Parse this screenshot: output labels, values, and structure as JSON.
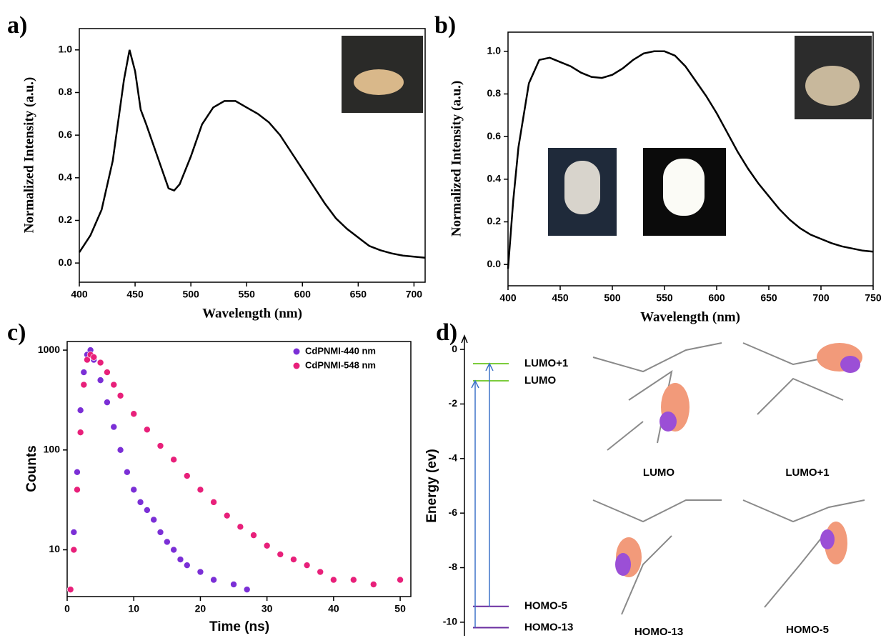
{
  "chart_data": [
    {
      "type": "line",
      "label": "a)",
      "xlabel": "Wavelength (nm)",
      "ylabel": "Normalized Intensity (a.u.)",
      "x": [
        400,
        410,
        420,
        430,
        440,
        445,
        450,
        455,
        460,
        470,
        480,
        485,
        490,
        500,
        510,
        520,
        530,
        540,
        550,
        560,
        570,
        580,
        590,
        600,
        610,
        620,
        630,
        640,
        650,
        660,
        670,
        680,
        690,
        700,
        710
      ],
      "values": [
        0.05,
        0.13,
        0.25,
        0.48,
        0.86,
        1.0,
        0.9,
        0.72,
        0.65,
        0.5,
        0.35,
        0.34,
        0.37,
        0.5,
        0.65,
        0.73,
        0.76,
        0.76,
        0.73,
        0.7,
        0.66,
        0.6,
        0.52,
        0.44,
        0.36,
        0.28,
        0.21,
        0.16,
        0.12,
        0.08,
        0.06,
        0.045,
        0.035,
        0.03,
        0.025
      ],
      "color": "#000000",
      "xlim": [
        400,
        710
      ],
      "xticks": [
        400,
        450,
        500,
        550,
        600,
        650,
        700
      ],
      "ylim": [
        -0.09,
        1.1
      ],
      "yticks": [
        {
          "value": 0,
          "label": "0.0"
        },
        {
          "value": 0.2,
          "label": "0.2"
        },
        {
          "value": 0.4,
          "label": "0.4"
        },
        {
          "value": 0.6,
          "label": "0.6"
        },
        {
          "value": 0.8,
          "label": "0.8"
        },
        {
          "value": 1,
          "label": "1.0"
        }
      ]
    },
    {
      "type": "line",
      "label": "b)",
      "xlabel": "Wavelength (nm)",
      "ylabel": "Normalized Intensity (a.u.)",
      "x": [
        400,
        405,
        410,
        420,
        430,
        440,
        450,
        460,
        470,
        480,
        490,
        500,
        510,
        520,
        530,
        540,
        550,
        560,
        570,
        580,
        590,
        600,
        610,
        620,
        630,
        640,
        650,
        660,
        670,
        680,
        690,
        700,
        710,
        720,
        730,
        740,
        750
      ],
      "values": [
        -0.02,
        0.3,
        0.55,
        0.85,
        0.96,
        0.97,
        0.95,
        0.93,
        0.9,
        0.88,
        0.875,
        0.89,
        0.92,
        0.96,
        0.99,
        1.0,
        1.0,
        0.98,
        0.93,
        0.86,
        0.79,
        0.71,
        0.62,
        0.53,
        0.45,
        0.38,
        0.32,
        0.26,
        0.21,
        0.17,
        0.14,
        0.12,
        0.1,
        0.085,
        0.075,
        0.065,
        0.06
      ],
      "color": "#000000",
      "xlim": [
        400,
        750
      ],
      "xticks": [
        400,
        450,
        500,
        550,
        600,
        650,
        700,
        750
      ],
      "ylim": [
        -0.1,
        1.09
      ],
      "yticks": [
        {
          "value": 0,
          "label": "0.0"
        },
        {
          "value": 0.2,
          "label": "0.2"
        },
        {
          "value": 0.4,
          "label": "0.4"
        },
        {
          "value": 0.6,
          "label": "0.6"
        },
        {
          "value": 0.8,
          "label": "0.8"
        },
        {
          "value": 1,
          "label": "1.0"
        }
      ]
    },
    {
      "type": "scatter",
      "label": "c)",
      "xlabel": "Time (ns)",
      "ylabel": "Counts",
      "log_y": true,
      "legend": "upper right",
      "series": [
        {
          "name": "CdPNMI-440 nm",
          "color": "#7b2fd6",
          "x": [
            0.5,
            1,
            1.5,
            2,
            2.5,
            3,
            3.5,
            4,
            5,
            6,
            7,
            8,
            9,
            10,
            11,
            12,
            13,
            14,
            15,
            16,
            17,
            18,
            20,
            22,
            25,
            27
          ],
          "values": [
            4,
            15,
            60,
            250,
            600,
            900,
            1000,
            800,
            500,
            300,
            170,
            100,
            60,
            40,
            30,
            25,
            20,
            15,
            12,
            10,
            8,
            7,
            6,
            5,
            4.5,
            4
          ]
        },
        {
          "name": "CdPNMI-548 nm",
          "color": "#e8207a",
          "x": [
            0.5,
            1,
            1.5,
            2,
            2.5,
            3,
            3.5,
            4,
            5,
            6,
            7,
            8,
            10,
            12,
            14,
            16,
            18,
            20,
            22,
            24,
            26,
            28,
            30,
            32,
            34,
            36,
            38,
            40,
            43,
            46,
            50
          ],
          "values": [
            4,
            10,
            40,
            150,
            450,
            800,
            900,
            850,
            750,
            600,
            450,
            350,
            230,
            160,
            110,
            80,
            55,
            40,
            30,
            22,
            17,
            14,
            11,
            9,
            8,
            7,
            6,
            5,
            5,
            4.5,
            5
          ]
        }
      ],
      "xlim": [
        0,
        51.6
      ],
      "xticks": [
        0,
        10,
        20,
        30,
        40,
        50
      ],
      "ylim": [
        3.4,
        1220
      ],
      "yticks": [
        10,
        100,
        1000
      ]
    },
    {
      "type": "levels",
      "label": "d)",
      "ylabel": "Energy (ev)",
      "categories": [
        "LUMO+1",
        "LUMO",
        "HOMO-5",
        "HOMO-13"
      ],
      "values": [
        -0.52,
        -1.15,
        -9.42,
        -10.2
      ],
      "colors": [
        "#7ccc3c",
        "#7ccc3c",
        "#6a2ea0",
        "#6a2ea0"
      ],
      "orbitals": [
        "LUMO",
        "LUMO+1",
        "HOMO-13",
        "HOMO-5"
      ],
      "ylim": [
        -10.5,
        0.5
      ],
      "yticks": [
        0,
        -2,
        -4,
        -6,
        -8,
        -10
      ]
    }
  ]
}
